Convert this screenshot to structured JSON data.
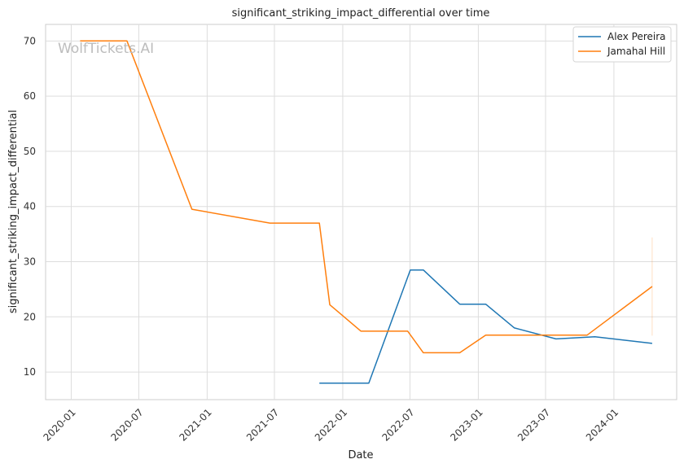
{
  "chart_data": {
    "type": "line",
    "title": "significant_striking_impact_differential over time",
    "xlabel": "Date",
    "ylabel": "significant_striking_impact_differential",
    "watermark": "WolfTickets.AI",
    "x_tick_labels": [
      "2020-01",
      "2020-07",
      "2021-01",
      "2021-07",
      "2022-01",
      "2022-07",
      "2023-01",
      "2023-07",
      "2024-01"
    ],
    "y_ticks": [
      10,
      20,
      30,
      40,
      50,
      60,
      70
    ],
    "xlim": [
      "2019-10-24",
      "2024-06-18"
    ],
    "ylim": [
      5,
      73
    ],
    "grid": true,
    "legend_position": "top-right",
    "series": [
      {
        "name": "Alex Pereira",
        "color": "#1f77b4",
        "points": [
          {
            "x": "2021-10-30",
            "y": 8.0
          },
          {
            "x": "2022-03-12",
            "y": 8.0
          },
          {
            "x": "2022-07-02",
            "y": 28.5
          },
          {
            "x": "2022-08-06",
            "y": 28.5
          },
          {
            "x": "2022-11-12",
            "y": 22.3
          },
          {
            "x": "2023-01-21",
            "y": 22.3
          },
          {
            "x": "2023-04-08",
            "y": 18.0
          },
          {
            "x": "2023-07-29",
            "y": 16.0
          },
          {
            "x": "2023-11-11",
            "y": 16.4
          },
          {
            "x": "2024-04-13",
            "y": 15.2
          }
        ]
      },
      {
        "name": "Jamahal Hill",
        "color": "#ff7f0e",
        "points": [
          {
            "x": "2020-01-25",
            "y": 70.0
          },
          {
            "x": "2020-05-30",
            "y": 70.0
          },
          {
            "x": "2020-11-21",
            "y": 39.5
          },
          {
            "x": "2021-06-19",
            "y": 37.0
          },
          {
            "x": "2021-10-30",
            "y": 37.0
          },
          {
            "x": "2021-11-27",
            "y": 22.2
          },
          {
            "x": "2022-02-19",
            "y": 17.4
          },
          {
            "x": "2022-06-25",
            "y": 17.4
          },
          {
            "x": "2022-08-06",
            "y": 13.5
          },
          {
            "x": "2022-11-12",
            "y": 13.5
          },
          {
            "x": "2023-01-21",
            "y": 16.7
          },
          {
            "x": "2023-10-21",
            "y": 16.7
          },
          {
            "x": "2024-04-13",
            "y": 25.5
          }
        ],
        "error_bar": {
          "x": "2024-04-13",
          "low": 16.6,
          "high": 34.4
        }
      }
    ]
  }
}
